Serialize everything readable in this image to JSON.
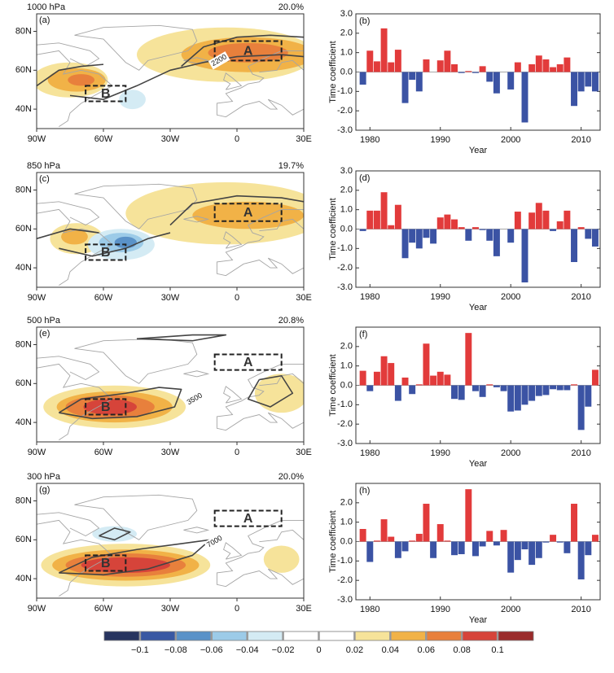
{
  "maps": [
    {
      "panel": "(a)",
      "level": "1000 hPa",
      "variance": "20.0%",
      "box_labels": [
        "A",
        "B"
      ],
      "contour_label": "2200"
    },
    {
      "panel": "(c)",
      "level": "850 hPa",
      "variance": "19.7%",
      "box_labels": [
        "A",
        "B"
      ]
    },
    {
      "panel": "(e)",
      "level": "500 hPa",
      "variance": "20.8%",
      "box_labels": [
        "A",
        "B"
      ],
      "contour_label": "3500"
    },
    {
      "panel": "(g)",
      "level": "300 hPa",
      "variance": "20.0%",
      "box_labels": [
        "A",
        "B"
      ],
      "contour_label": "7000"
    }
  ],
  "map_xticks": [
    "90W",
    "60W",
    "30W",
    "0",
    "30E"
  ],
  "map_yticks": [
    "80N",
    "60N",
    "40N"
  ],
  "chart_data": [
    {
      "type": "bar",
      "panel": "(b)",
      "ylabel": "Time coefficient",
      "xlabel": "Year",
      "x": [
        1979,
        1980,
        1981,
        1982,
        1983,
        1984,
        1985,
        1986,
        1987,
        1988,
        1989,
        1990,
        1991,
        1992,
        1993,
        1994,
        1995,
        1996,
        1997,
        1998,
        1999,
        2000,
        2001,
        2002,
        2003,
        2004,
        2005,
        2006,
        2007,
        2008,
        2009,
        2010,
        2011,
        2012
      ],
      "values": [
        -0.65,
        1.1,
        0.55,
        2.25,
        0.5,
        1.15,
        -1.6,
        -0.4,
        -1.0,
        0.65,
        0,
        0.6,
        1.1,
        0.4,
        -0.05,
        0.05,
        -0.05,
        0.3,
        -0.5,
        -1.1,
        0,
        -0.9,
        0.5,
        -2.6,
        0.4,
        0.85,
        0.65,
        0.25,
        0.4,
        0.75,
        -1.75,
        -1.0,
        -0.75,
        -1.0
      ],
      "positive_color": "#e23b3b",
      "negative_color": "#3b53a4",
      "xlim": [
        1978,
        2012.7
      ],
      "xticks": [
        1980,
        1990,
        2000,
        2010
      ],
      "ylim": [
        -3,
        3
      ],
      "yticks": [
        {
          "value": -3,
          "label": "-3.0"
        },
        {
          "value": -2,
          "label": "-2.0"
        },
        {
          "value": -1,
          "label": "-1.0"
        },
        {
          "value": 0,
          "label": "0.0"
        },
        {
          "value": 1,
          "label": "1.0"
        },
        {
          "value": 2,
          "label": "2.0"
        },
        {
          "value": 3,
          "label": "3.0"
        }
      ]
    },
    {
      "type": "bar",
      "panel": "(d)",
      "ylabel": "Time coefficient",
      "xlabel": "Year",
      "x": [
        1979,
        1980,
        1981,
        1982,
        1983,
        1984,
        1985,
        1986,
        1987,
        1988,
        1989,
        1990,
        1991,
        1992,
        1993,
        1994,
        1995,
        1996,
        1997,
        1998,
        1999,
        2000,
        2001,
        2002,
        2003,
        2004,
        2005,
        2006,
        2007,
        2008,
        2009,
        2010,
        2011,
        2012
      ],
      "values": [
        -0.1,
        0.95,
        0.95,
        1.9,
        0.2,
        1.25,
        -1.5,
        -0.7,
        -1.0,
        -0.45,
        -0.75,
        0.6,
        0.75,
        0.5,
        0.1,
        -0.6,
        0.1,
        -0.05,
        -0.6,
        -1.4,
        0,
        -0.7,
        0.9,
        -2.75,
        0.85,
        1.35,
        0.95,
        -0.1,
        0.4,
        0.95,
        -1.7,
        0.1,
        -0.5,
        -0.9
      ],
      "positive_color": "#e23b3b",
      "negative_color": "#3b53a4",
      "xlim": [
        1978,
        2012.7
      ],
      "xticks": [
        1980,
        1990,
        2000,
        2010
      ],
      "ylim": [
        -3,
        3
      ],
      "yticks": [
        {
          "value": -3,
          "label": "-3.0"
        },
        {
          "value": -2,
          "label": "-2.0"
        },
        {
          "value": -1,
          "label": "-1.0"
        },
        {
          "value": 0,
          "label": "0.0"
        },
        {
          "value": 1,
          "label": "1.0"
        },
        {
          "value": 2,
          "label": "2.0"
        },
        {
          "value": 3,
          "label": "3.0"
        }
      ]
    },
    {
      "type": "bar",
      "panel": "(f)",
      "ylabel": "Time coefficient",
      "xlabel": "Year",
      "x": [
        1979,
        1980,
        1981,
        1982,
        1983,
        1984,
        1985,
        1986,
        1987,
        1988,
        1989,
        1990,
        1991,
        1992,
        1993,
        1994,
        1995,
        1996,
        1997,
        1998,
        1999,
        2000,
        2001,
        2002,
        2003,
        2004,
        2005,
        2006,
        2007,
        2008,
        2009,
        2010,
        2011,
        2012
      ],
      "values": [
        0.75,
        -0.3,
        0.7,
        1.5,
        1.15,
        -0.8,
        0.4,
        -0.45,
        0.05,
        2.15,
        0.5,
        0.7,
        0.55,
        -0.7,
        -0.75,
        2.7,
        -0.3,
        -0.6,
        0.05,
        -0.1,
        -0.3,
        -1.35,
        -1.3,
        -1.0,
        -0.8,
        -0.55,
        -0.5,
        -0.2,
        -0.25,
        -0.25,
        0.05,
        -2.3,
        -1.1,
        0.8
      ],
      "positive_color": "#e23b3b",
      "negative_color": "#3b53a4",
      "xlim": [
        1978,
        2012.7
      ],
      "xticks": [
        1980,
        1990,
        2000,
        2010
      ],
      "ylim": [
        -3,
        3
      ],
      "yticks": [
        {
          "value": -3,
          "label": "-3.0"
        },
        {
          "value": -2,
          "label": "-2.0"
        },
        {
          "value": -1,
          "label": "-1.0"
        },
        {
          "value": 0,
          "label": "0.0"
        },
        {
          "value": 1,
          "label": "1.0"
        },
        {
          "value": 2,
          "label": "2.0"
        }
      ]
    },
    {
      "type": "bar",
      "panel": "(h)",
      "ylabel": "Time coefficient",
      "xlabel": "Year",
      "x": [
        1979,
        1980,
        1981,
        1982,
        1983,
        1984,
        1985,
        1986,
        1987,
        1988,
        1989,
        1990,
        1991,
        1992,
        1993,
        1994,
        1995,
        1996,
        1997,
        1998,
        1999,
        2000,
        2001,
        2002,
        2003,
        2004,
        2005,
        2006,
        2007,
        2008,
        2009,
        2010,
        2011,
        2012
      ],
      "values": [
        0.65,
        -1.05,
        0.05,
        1.15,
        0.25,
        -0.85,
        -0.5,
        0.05,
        0.4,
        1.95,
        -0.85,
        0.9,
        0.05,
        -0.7,
        -0.65,
        2.7,
        -0.75,
        -0.25,
        0.55,
        -0.2,
        0.6,
        -1.6,
        -0.95,
        -0.4,
        -1.2,
        -0.85,
        -0.05,
        0.35,
        -0.05,
        -0.6,
        1.95,
        -1.95,
        -0.7,
        0.35
      ],
      "positive_color": "#e23b3b",
      "negative_color": "#3b53a4",
      "xlim": [
        1978,
        2012.7
      ],
      "xticks": [
        1980,
        1990,
        2000,
        2010
      ],
      "ylim": [
        -3,
        3
      ],
      "yticks": [
        {
          "value": -3,
          "label": "-3.0"
        },
        {
          "value": -2,
          "label": "-2.0"
        },
        {
          "value": -1,
          "label": "-1.0"
        },
        {
          "value": 0,
          "label": "0.0"
        },
        {
          "value": 1,
          "label": "1.0"
        },
        {
          "value": 2,
          "label": "2.0"
        }
      ]
    }
  ],
  "colorbar": {
    "colors": [
      "#27345f",
      "#3958a3",
      "#5a92c8",
      "#9ccbe8",
      "#d4ebf4",
      "#ffffff",
      "#ffffff",
      "#f6e39a",
      "#f1b247",
      "#e8803c",
      "#d6443a",
      "#9a2b2b"
    ],
    "ticks": [
      {
        "value": -0.1,
        "label": "−0.1"
      },
      {
        "value": -0.08,
        "label": "−0.08"
      },
      {
        "value": -0.06,
        "label": "−0.06"
      },
      {
        "value": -0.04,
        "label": "−0.04"
      },
      {
        "value": -0.02,
        "label": "−0.02"
      },
      0,
      0.02,
      0.04,
      0.06,
      0.08,
      0.1
    ]
  }
}
